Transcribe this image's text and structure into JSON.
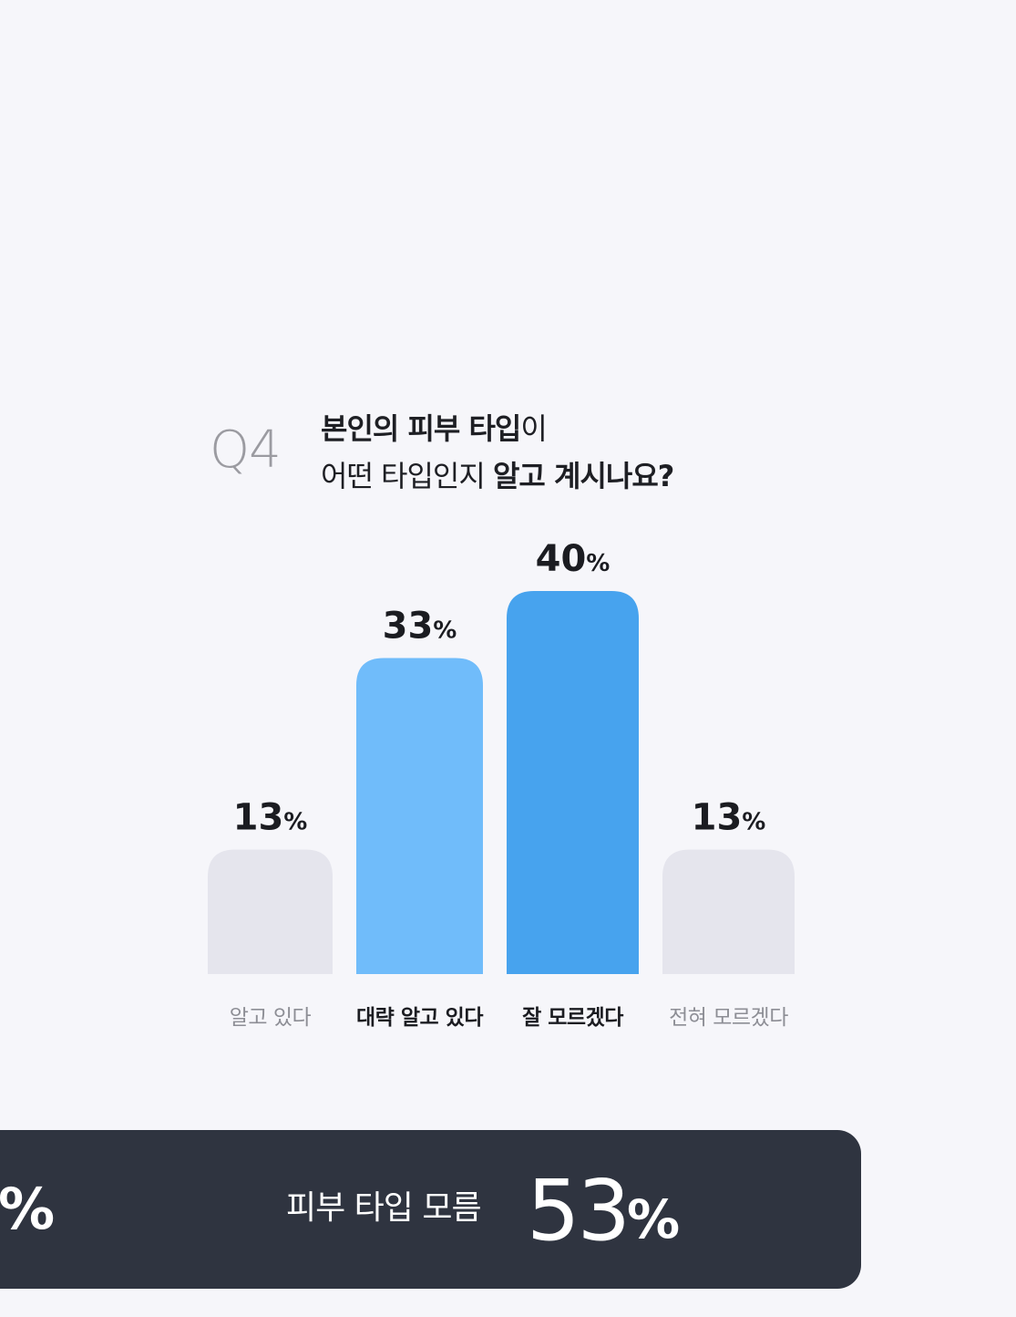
{
  "question": {
    "number": "Q4",
    "line1_bold": "본인의 피부 타입",
    "line1_rest": "이",
    "line2_rest": "어떤 타입인지 ",
    "line2_bold": "알고 계시나요?"
  },
  "chart_data": {
    "type": "bar",
    "categories": [
      "알고 있다",
      "대략 알고 있다",
      "잘 모르겠다",
      "전혀 모르겠다"
    ],
    "values": [
      13,
      33,
      40,
      13
    ],
    "unit": "%",
    "colors": [
      "#e5e5ed",
      "#70bcfa",
      "#47a3ee",
      "#e5e5ed"
    ],
    "emphasized": [
      false,
      true,
      true,
      false
    ]
  },
  "banner": {
    "left_pct": "%",
    "label": "피부 타입 모름",
    "value": "53",
    "unit": "%"
  }
}
